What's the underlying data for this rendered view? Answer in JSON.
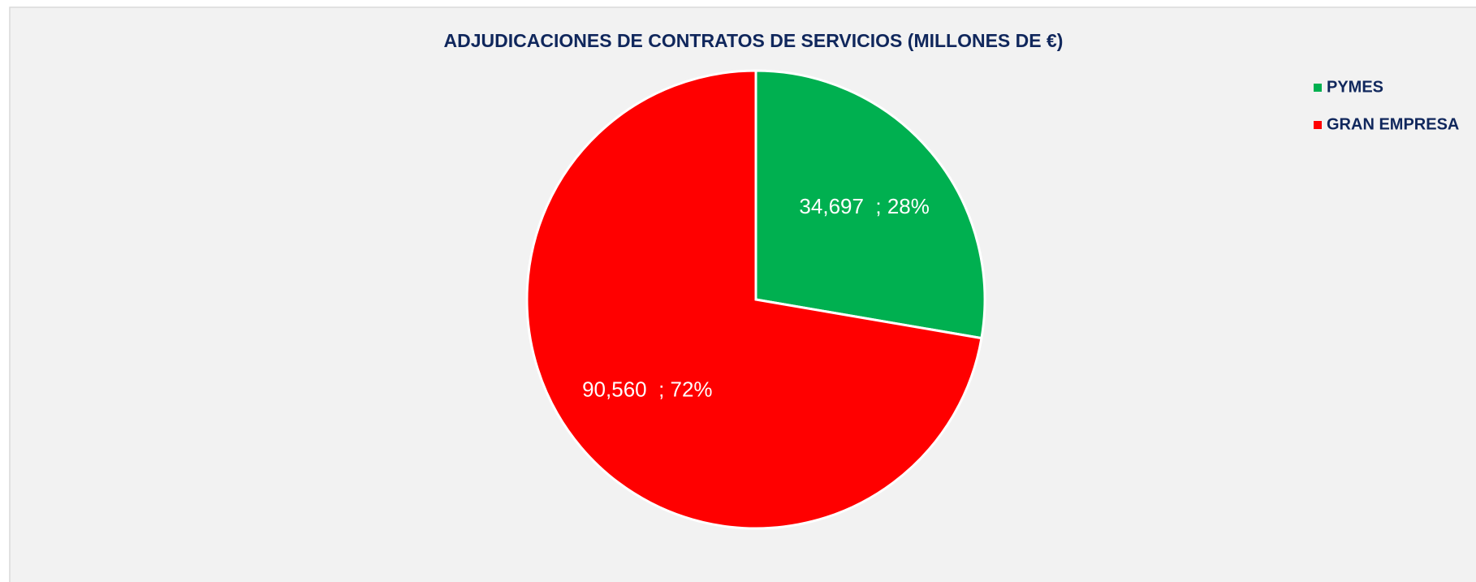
{
  "chart_data": {
    "type": "pie",
    "title": "ADJUDICACIONES DE CONTRATOS DE SERVICIOS (MILLONES DE €)",
    "categories": [
      "PYMES",
      "GRAN EMPRESA"
    ],
    "values": [
      34.697,
      90.56
    ],
    "value_labels": [
      "34,697  ; 28%",
      "90,560  ; 72%"
    ],
    "colors": [
      "#00b050",
      "#ff0000"
    ],
    "legend": "right"
  }
}
